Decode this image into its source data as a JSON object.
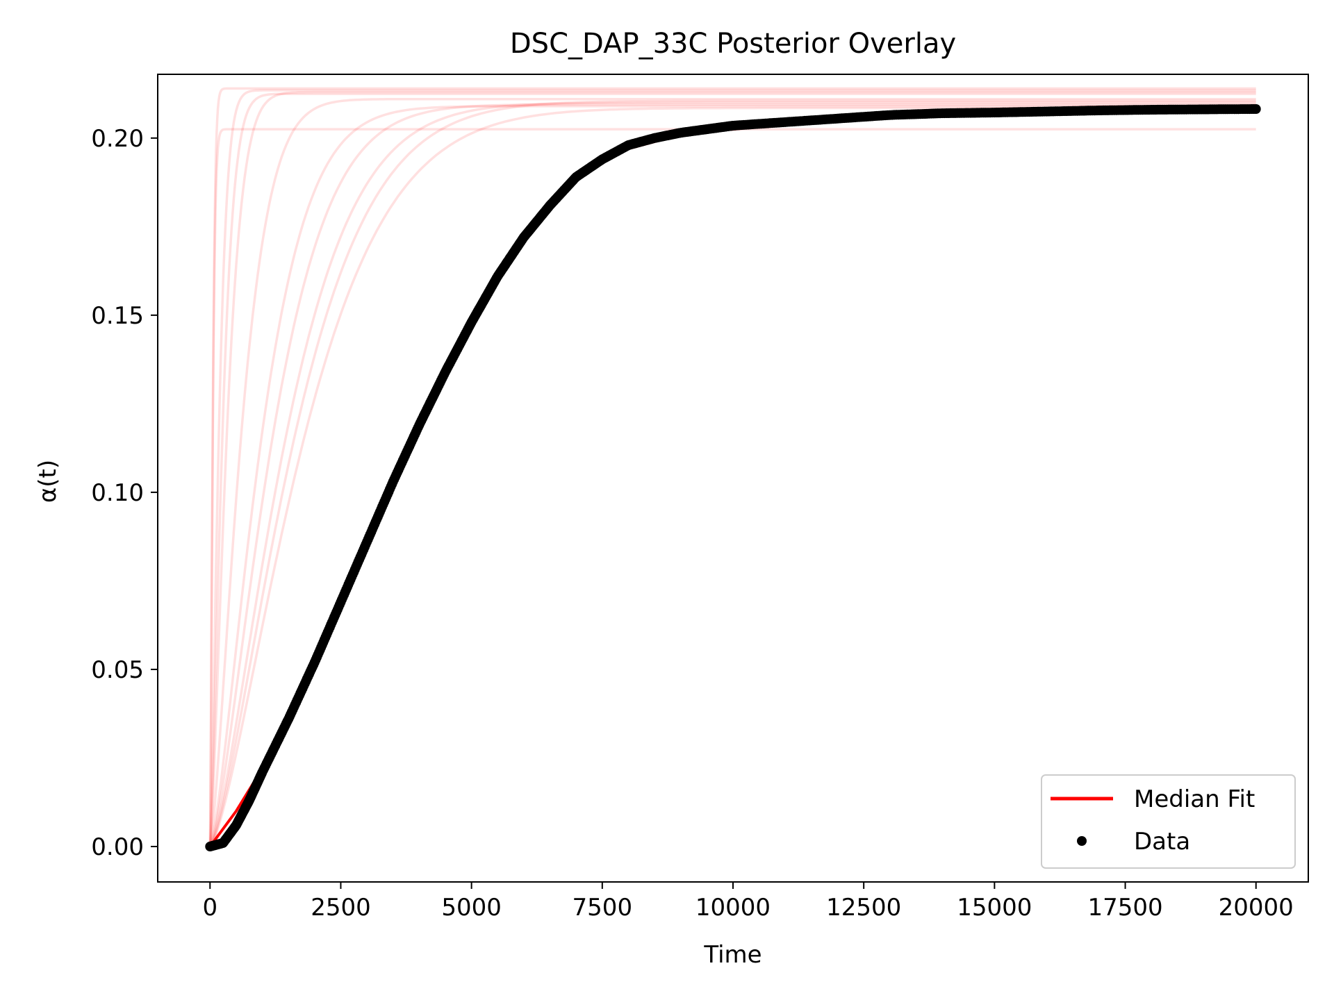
{
  "chart_data": {
    "type": "line",
    "title": "DSC_DAP_33C Posterior Overlay",
    "xlabel": "Time",
    "ylabel": "α(t)",
    "xlim": [
      -1000,
      21000
    ],
    "ylim": [
      -0.01,
      0.218
    ],
    "xticks": [
      0,
      2500,
      5000,
      7500,
      10000,
      12500,
      15000,
      17500,
      20000
    ],
    "xtick_labels": [
      "0",
      "2500",
      "5000",
      "7500",
      "10000",
      "12500",
      "15000",
      "17500",
      "20000"
    ],
    "yticks": [
      0.0,
      0.05,
      0.1,
      0.15,
      0.2
    ],
    "ytick_labels": [
      "0.00",
      "0.05",
      "0.10",
      "0.15",
      "0.20"
    ],
    "grid": false,
    "legend": {
      "position": "lower right",
      "entries": [
        {
          "label": "Median Fit",
          "marker": "line",
          "color": "#ff0000"
        },
        {
          "label": "Data",
          "marker": "dot",
          "color": "#000000"
        }
      ]
    },
    "posterior_samples": {
      "color": "#ff0000",
      "opacity": 0.12,
      "curves": [
        {
          "plateau": 0.2135,
          "rise_time": 200
        },
        {
          "plateau": 0.2125,
          "rise_time": 280
        },
        {
          "plateau": 0.213,
          "rise_time": 380
        },
        {
          "plateau": 0.211,
          "rise_time": 700
        },
        {
          "plateau": 0.209,
          "rise_time": 1150
        },
        {
          "plateau": 0.2095,
          "rise_time": 1400
        },
        {
          "plateau": 0.21,
          "rise_time": 1700
        },
        {
          "plateau": 0.2105,
          "rise_time": 1900
        },
        {
          "plateau": 0.2085,
          "rise_time": 2100
        },
        {
          "plateau": 0.2025,
          "rise_time": 60
        },
        {
          "plateau": 0.214,
          "rise_time": 60
        }
      ]
    },
    "series": [
      {
        "name": "Median Fit",
        "color": "#ff0000",
        "x": [
          0,
          250,
          500,
          750,
          1000,
          1500,
          2000,
          2500,
          3000,
          3500,
          4000,
          4500,
          5000,
          5500,
          6000,
          6500,
          7000,
          7500,
          8000,
          8500,
          9000,
          9500,
          10000,
          11000,
          12000,
          13000,
          14000,
          15000,
          16000,
          17000,
          18000,
          19000,
          20000
        ],
        "y": [
          0.0,
          0.005,
          0.01,
          0.016,
          0.022,
          0.036,
          0.052,
          0.069,
          0.086,
          0.103,
          0.119,
          0.134,
          0.148,
          0.161,
          0.172,
          0.181,
          0.188,
          0.193,
          0.197,
          0.199,
          0.201,
          0.202,
          0.2025,
          0.204,
          0.2055,
          0.2065,
          0.207,
          0.2072,
          0.2075,
          0.2078,
          0.208,
          0.2081,
          0.2082
        ]
      },
      {
        "name": "Data",
        "color": "#000000",
        "x": [
          0,
          250,
          500,
          750,
          1000,
          1500,
          2000,
          2500,
          3000,
          3500,
          4000,
          4500,
          5000,
          5500,
          6000,
          6500,
          7000,
          7500,
          8000,
          8500,
          9000,
          9500,
          10000,
          11000,
          12000,
          13000,
          14000,
          15000,
          16000,
          17000,
          18000,
          19000,
          20000
        ],
        "y": [
          0.0,
          0.001,
          0.006,
          0.013,
          0.021,
          0.036,
          0.052,
          0.069,
          0.086,
          0.103,
          0.119,
          0.134,
          0.148,
          0.161,
          0.172,
          0.181,
          0.189,
          0.194,
          0.198,
          0.2,
          0.2015,
          0.2025,
          0.2035,
          0.2045,
          0.2055,
          0.2065,
          0.207,
          0.2072,
          0.2075,
          0.2078,
          0.208,
          0.2081,
          0.2082
        ]
      }
    ]
  }
}
